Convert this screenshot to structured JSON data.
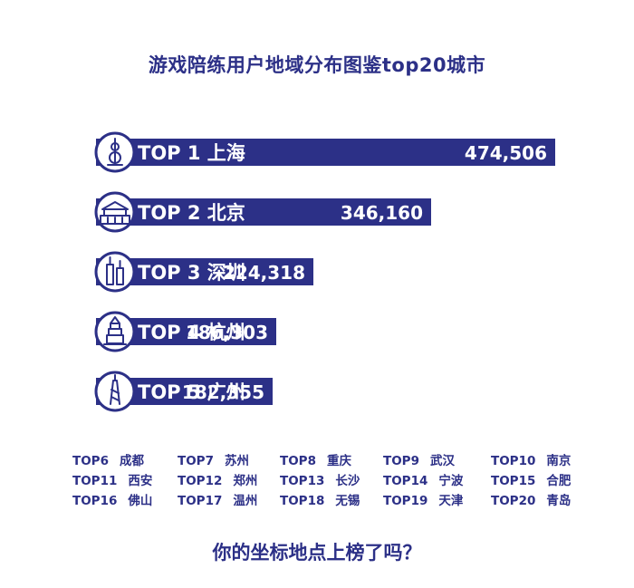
{
  "title": "游戏陪练用户地域分布图鉴top20城市",
  "question": "你的坐标地点上榜了吗？",
  "colors": {
    "bar": "#2c3087",
    "text_on_bar": "#ffffff",
    "background": "#ffffff"
  },
  "chart_data": {
    "type": "bar",
    "title": "游戏陪练用户地域分布图鉴top20城市",
    "categories": [
      "TOP 1 上海",
      "TOP 2 北京",
      "TOP 3 深圳",
      "TOP 4 杭州",
      "TOP 5 广州"
    ],
    "values": [
      474506,
      346160,
      224318,
      186303,
      182355
    ],
    "value_labels": [
      "474,506",
      "346,160",
      "224,318",
      "186,303",
      "182,355"
    ],
    "icons": [
      "oriental-pearl-tower-icon",
      "tiananmen-icon",
      "twin-towers-icon",
      "pagoda-icon",
      "canton-tower-icon"
    ]
  },
  "ranks_6_20": [
    [
      {
        "rank": "TOP6",
        "city": "成都"
      },
      {
        "rank": "TOP7",
        "city": "苏州"
      },
      {
        "rank": "TOP8",
        "city": "重庆"
      },
      {
        "rank": "TOP9",
        "city": "武汉"
      },
      {
        "rank": "TOP10",
        "city": "南京"
      }
    ],
    [
      {
        "rank": "TOP11",
        "city": "西安"
      },
      {
        "rank": "TOP12",
        "city": "郑州"
      },
      {
        "rank": "TOP13",
        "city": "长沙"
      },
      {
        "rank": "TOP14",
        "city": "宁波"
      },
      {
        "rank": "TOP15",
        "city": "合肥"
      }
    ],
    [
      {
        "rank": "TOP16",
        "city": "佛山"
      },
      {
        "rank": "TOP17",
        "city": "温州"
      },
      {
        "rank": "TOP18",
        "city": "无锡"
      },
      {
        "rank": "TOP19",
        "city": "天津"
      },
      {
        "rank": "TOP20",
        "city": "青岛"
      }
    ]
  ]
}
